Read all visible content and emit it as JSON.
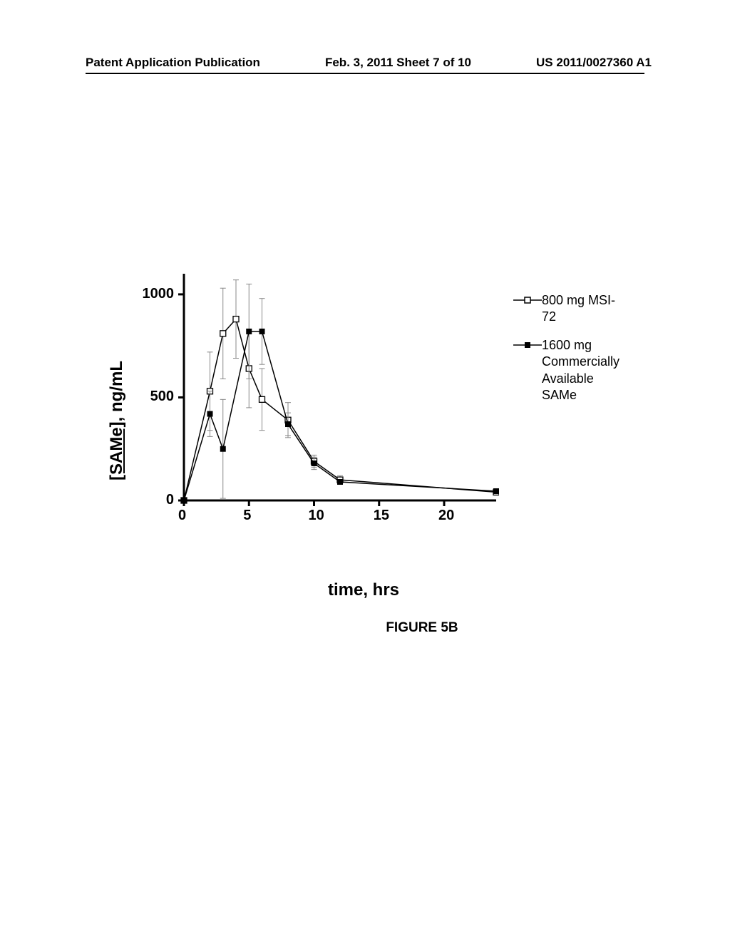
{
  "header": {
    "left": "Patent Application Publication",
    "center": "Feb. 3, 2011  Sheet 7 of 10",
    "right": "US 2011/0027360 A1"
  },
  "figure_caption": "FIGURE 5B",
  "chart": {
    "type": "line",
    "background_color": "#ffffff",
    "axis_color": "#000000",
    "axis_width": 3,
    "tick_length": 8,
    "tick_width": 3,
    "xlabel": "time, hrs",
    "ylabel_underlined": "[SAMe]",
    "ylabel_suffix": ", ng/mL",
    "label_fontsize": 24,
    "label_fontweight": "bold",
    "tick_fontsize": 20,
    "tick_fontweight": "bold",
    "xlim": [
      0,
      24
    ],
    "ylim": [
      0,
      1100
    ],
    "xticks": [
      0,
      5,
      10,
      15,
      20
    ],
    "yticks": [
      0,
      500,
      1000
    ],
    "series": [
      {
        "name": "800 mg MSI-72",
        "marker": "open-square",
        "marker_size": 8,
        "line_color": "#000000",
        "line_width": 1.5,
        "error_color": "#888888",
        "x": [
          0,
          2,
          3,
          4,
          5,
          6,
          8,
          10,
          12,
          24
        ],
        "y": [
          0,
          530,
          810,
          880,
          640,
          490,
          390,
          190,
          100,
          40
        ],
        "err": [
          0,
          190,
          220,
          190,
          190,
          150,
          85,
          30,
          20,
          8
        ]
      },
      {
        "name": "1600 mg Commercially Available SAMe",
        "marker": "filled-square",
        "marker_size": 8,
        "line_color": "#000000",
        "line_width": 1.5,
        "error_color": "#888888",
        "x": [
          0,
          2,
          3,
          5,
          6,
          8,
          10,
          12,
          24
        ],
        "y": [
          0,
          420,
          250,
          820,
          820,
          370,
          180,
          90,
          45
        ],
        "err": [
          0,
          110,
          240,
          230,
          160,
          55,
          30,
          12,
          8
        ]
      }
    ],
    "legend": {
      "position": "right",
      "fontsize": 18,
      "items": [
        {
          "marker": "open-square",
          "text": "800 mg MSI-72"
        },
        {
          "marker": "filled-square",
          "text": "1600 mg\nCommercially\nAvailable SAMe"
        }
      ]
    }
  }
}
